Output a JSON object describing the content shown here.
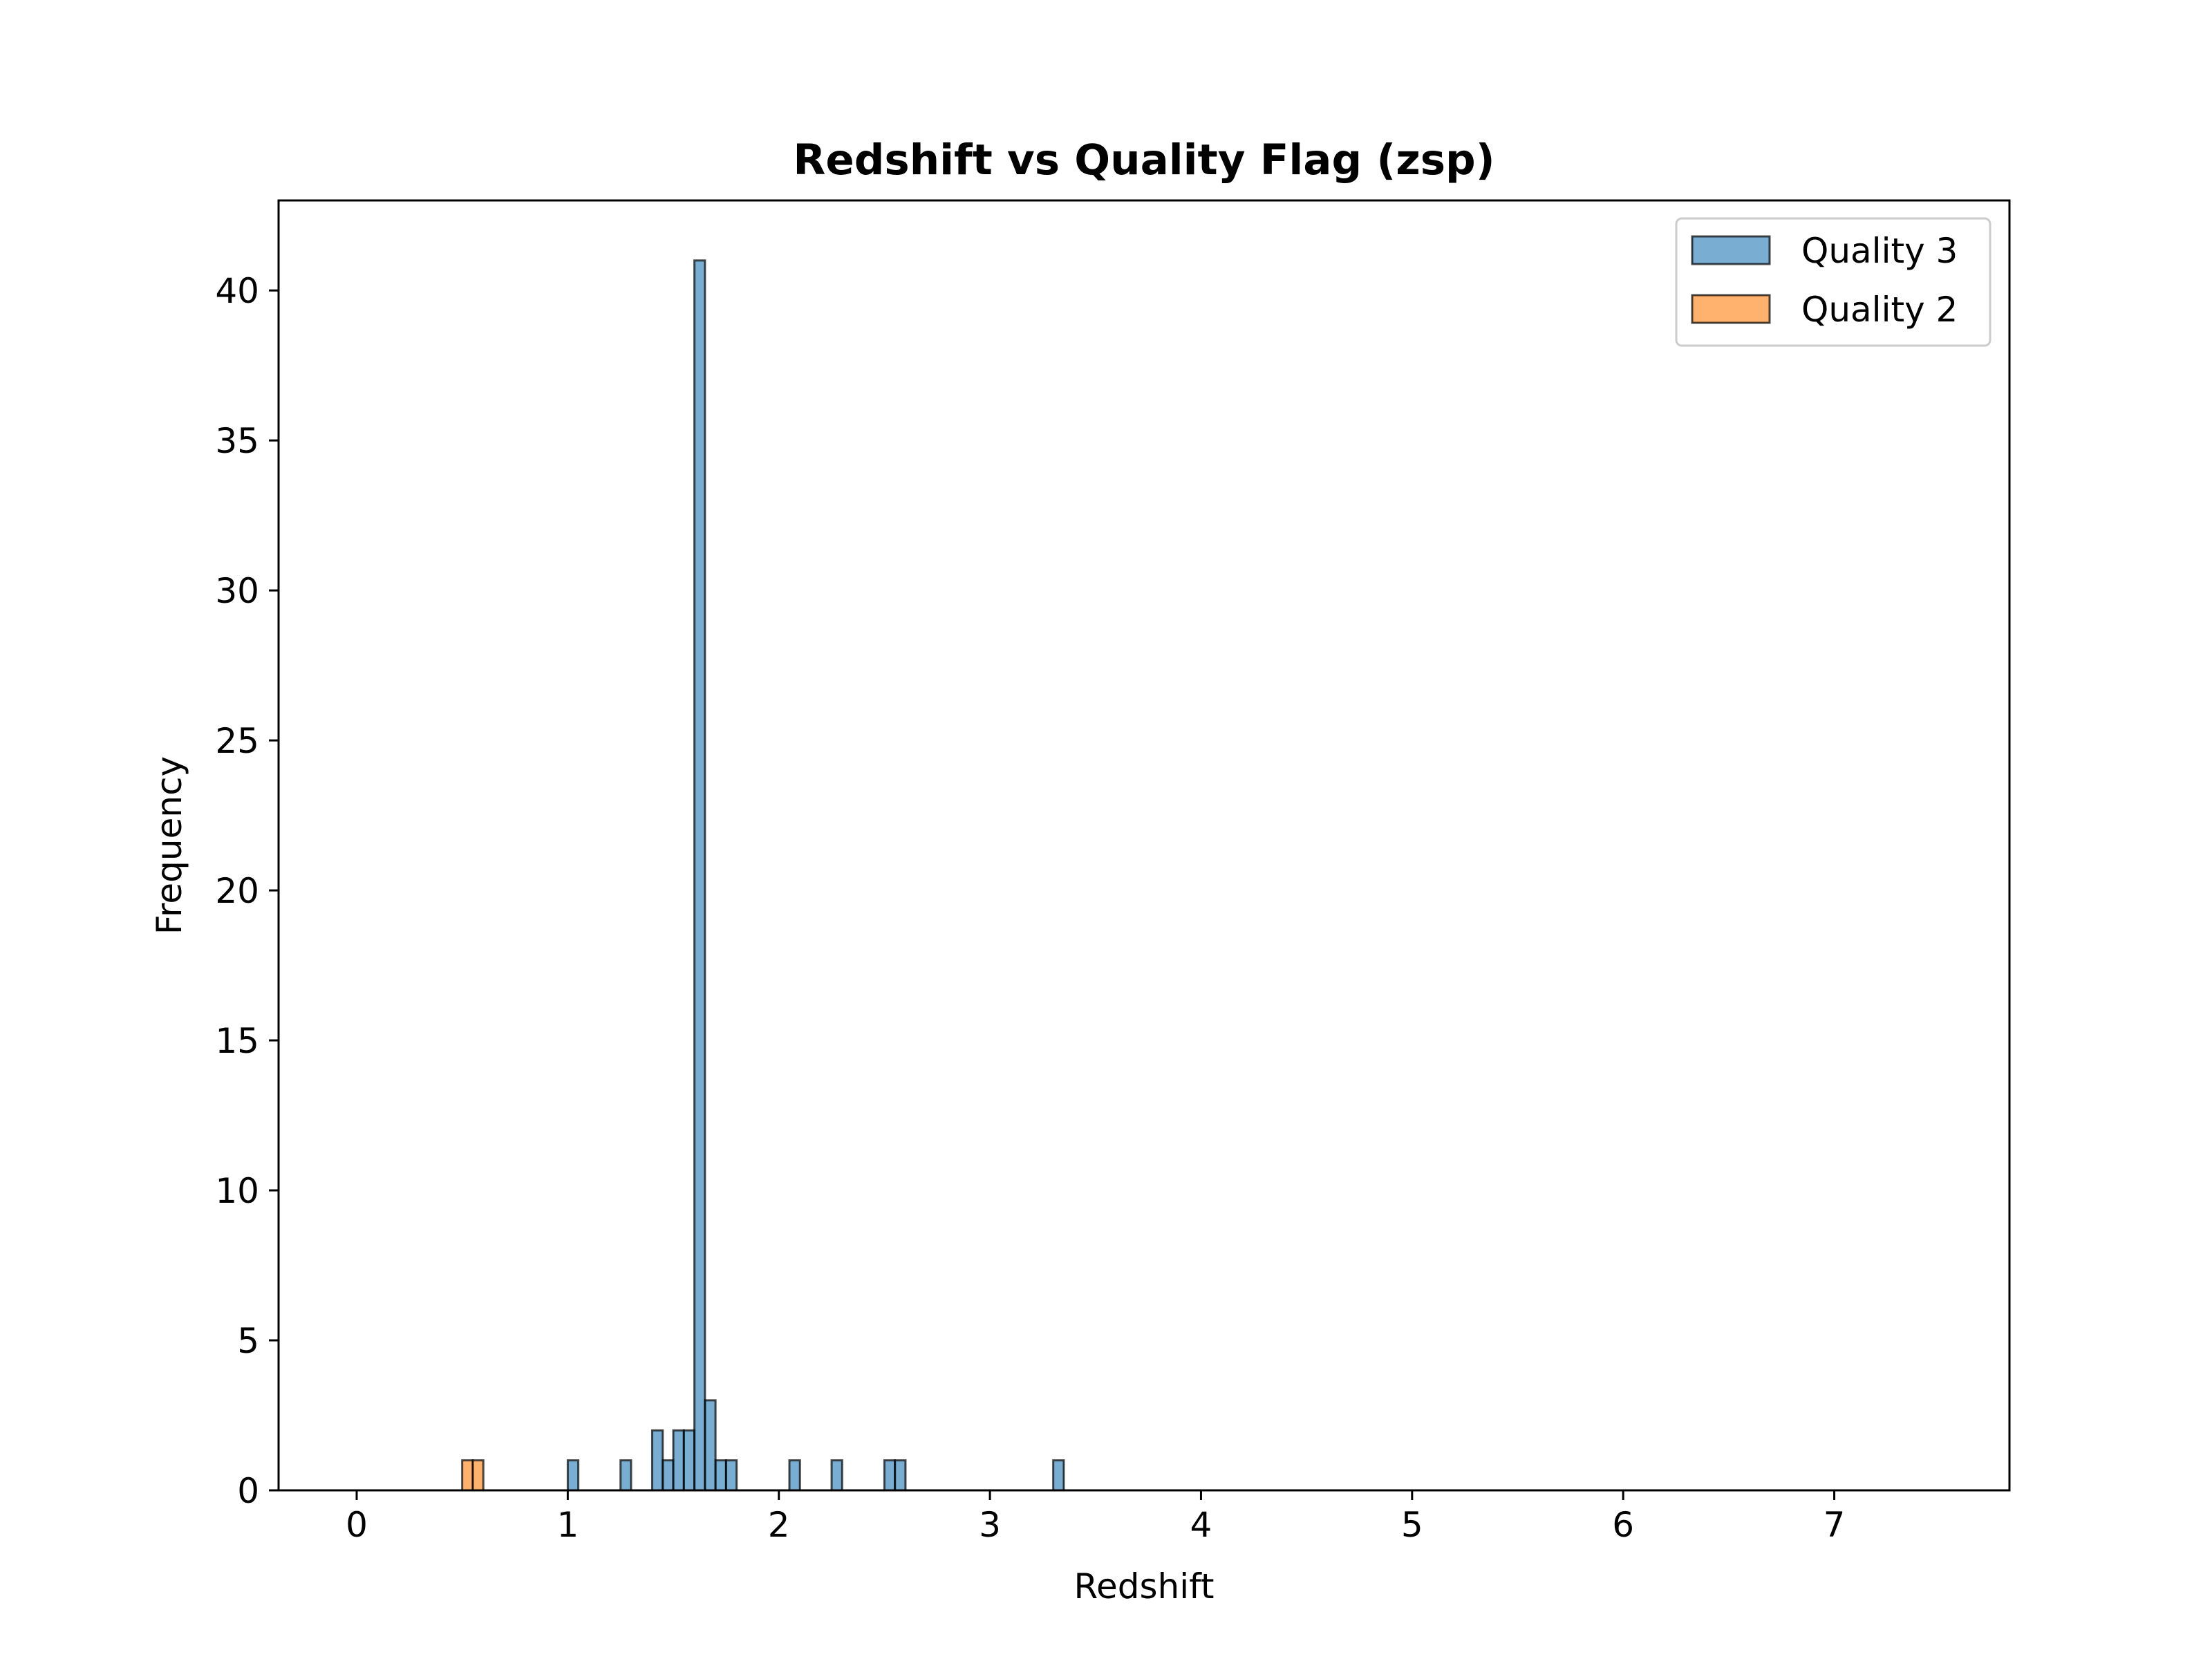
{
  "chart_data": {
    "type": "bar",
    "subtype": "histogram",
    "title": "Redshift vs Quality Flag (zsp)",
    "xlabel": "Redshift",
    "ylabel": "Frequency",
    "xlim": [
      -0.37,
      7.83
    ],
    "ylim": [
      0,
      43
    ],
    "xticks": [
      0,
      1,
      2,
      3,
      4,
      5,
      6,
      7
    ],
    "yticks": [
      0,
      5,
      10,
      15,
      20,
      25,
      30,
      35,
      40
    ],
    "bin_width": 0.05,
    "legend": "upper right",
    "grid": false,
    "series": [
      {
        "name": "Quality 3",
        "color": "#1f77b4",
        "bins": [
          {
            "x": 1.0,
            "value": 1
          },
          {
            "x": 1.25,
            "value": 1
          },
          {
            "x": 1.4,
            "value": 2
          },
          {
            "x": 1.45,
            "value": 1
          },
          {
            "x": 1.5,
            "value": 2
          },
          {
            "x": 1.55,
            "value": 2
          },
          {
            "x": 1.6,
            "value": 41
          },
          {
            "x": 1.65,
            "value": 3
          },
          {
            "x": 1.7,
            "value": 1
          },
          {
            "x": 1.75,
            "value": 1
          },
          {
            "x": 2.05,
            "value": 1
          },
          {
            "x": 2.25,
            "value": 1
          },
          {
            "x": 2.5,
            "value": 1
          },
          {
            "x": 2.55,
            "value": 1
          },
          {
            "x": 3.3,
            "value": 1
          }
        ],
        "zero_range": [
          0,
          7.45
        ]
      },
      {
        "name": "Quality 2",
        "color": "#ff7f0e",
        "bins": [
          {
            "x": 0.5,
            "value": 1
          },
          {
            "x": 0.55,
            "value": 1
          }
        ],
        "zero_range": [
          0,
          7.45
        ]
      }
    ]
  }
}
